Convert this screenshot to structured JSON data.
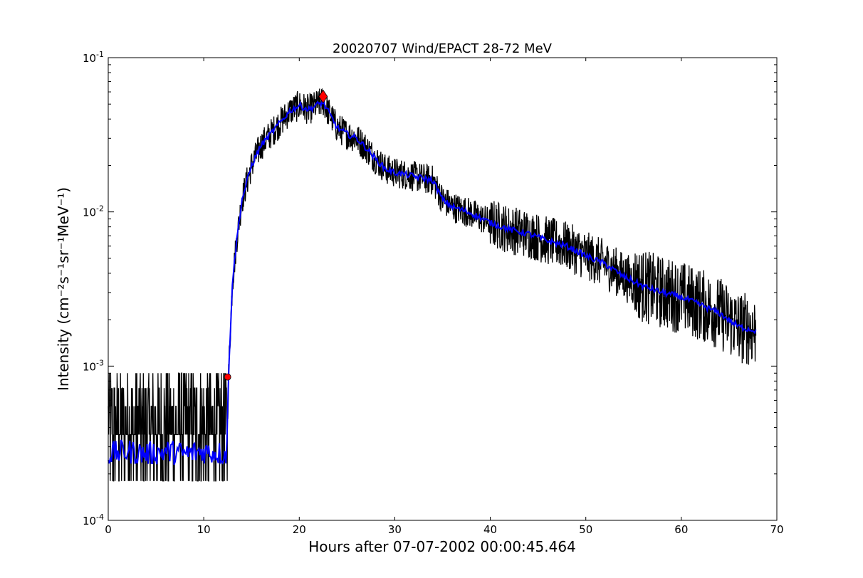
{
  "chart_data": {
    "type": "line",
    "title": "20020707 Wind/EPACT 28-72 MeV",
    "xlabel": "Hours after 07-07-2002 00:00:45.464",
    "ylabel": "Intensity (cm⁻²s⁻¹sr⁻¹MeV⁻¹)",
    "xlim": [
      0,
      70
    ],
    "ylim": [
      0.0001,
      0.1
    ],
    "yscale": "log",
    "grid": false,
    "xticks": [
      0,
      10,
      20,
      30,
      40,
      50,
      60,
      70
    ],
    "xtick_labels": [
      "0",
      "10",
      "20",
      "30",
      "40",
      "50",
      "60",
      "70"
    ],
    "yticks": [
      0.0001,
      0.001,
      0.01,
      0.1
    ],
    "ytick_labels": [
      {
        "base": "10",
        "exp": "-4"
      },
      {
        "base": "10",
        "exp": "-3"
      },
      {
        "base": "10",
        "exp": "-2"
      },
      {
        "base": "10",
        "exp": "-1"
      }
    ],
    "colors": {
      "raw": "#000000",
      "smoothed": "#0000ff",
      "marker": "#ff0000"
    },
    "series": [
      {
        "style": "raw-noisy-line",
        "x": [
          0,
          2,
          4,
          6,
          8,
          10,
          12.4,
          12.6,
          13,
          13.5,
          14,
          15,
          16,
          17,
          18,
          19,
          20,
          21,
          22,
          22.5,
          23,
          24,
          25,
          26,
          27,
          28,
          29,
          30,
          32,
          34,
          35,
          36,
          38,
          40,
          42,
          44,
          46,
          48,
          50,
          52,
          54,
          56,
          58,
          60,
          62,
          64,
          66,
          67.8
        ],
        "y": [
          0.00025,
          0.00026,
          0.00025,
          0.00025,
          0.00026,
          0.00025,
          0.00025,
          0.0009,
          0.0035,
          0.007,
          0.012,
          0.02,
          0.027,
          0.032,
          0.038,
          0.045,
          0.049,
          0.046,
          0.05,
          0.052,
          0.045,
          0.035,
          0.032,
          0.03,
          0.026,
          0.022,
          0.019,
          0.018,
          0.017,
          0.016,
          0.012,
          0.0108,
          0.0098,
          0.0085,
          0.0077,
          0.0072,
          0.0065,
          0.006,
          0.0052,
          0.0046,
          0.0038,
          0.0033,
          0.003,
          0.0028,
          0.0025,
          0.0022,
          0.0018,
          0.0017
        ]
      },
      {
        "style": "smoothed-line",
        "x": [
          0,
          2,
          4,
          6,
          8,
          10,
          12.4,
          12.6,
          13,
          13.5,
          14,
          15,
          16,
          17,
          18,
          19,
          20,
          21,
          22,
          22.5,
          23,
          24,
          25,
          26,
          27,
          28,
          29,
          30,
          32,
          34,
          35,
          36,
          38,
          40,
          42,
          44,
          46,
          48,
          50,
          52,
          54,
          56,
          58,
          60,
          62,
          64,
          66,
          67.8
        ],
        "y": [
          0.00027,
          0.00028,
          0.00027,
          0.00028,
          0.00027,
          0.00028,
          0.00027,
          0.0009,
          0.0035,
          0.007,
          0.012,
          0.02,
          0.027,
          0.032,
          0.038,
          0.045,
          0.049,
          0.046,
          0.05,
          0.051,
          0.045,
          0.035,
          0.032,
          0.03,
          0.026,
          0.022,
          0.019,
          0.018,
          0.017,
          0.016,
          0.012,
          0.0108,
          0.0098,
          0.0085,
          0.0077,
          0.0072,
          0.0065,
          0.006,
          0.0052,
          0.0046,
          0.0038,
          0.0033,
          0.003,
          0.0028,
          0.0025,
          0.0022,
          0.0018,
          0.0017
        ]
      }
    ],
    "markers": [
      {
        "shape": "circle",
        "x": 12.5,
        "y": 0.00085
      },
      {
        "shape": "diamond",
        "x": 22.5,
        "y": 0.056
      }
    ]
  }
}
